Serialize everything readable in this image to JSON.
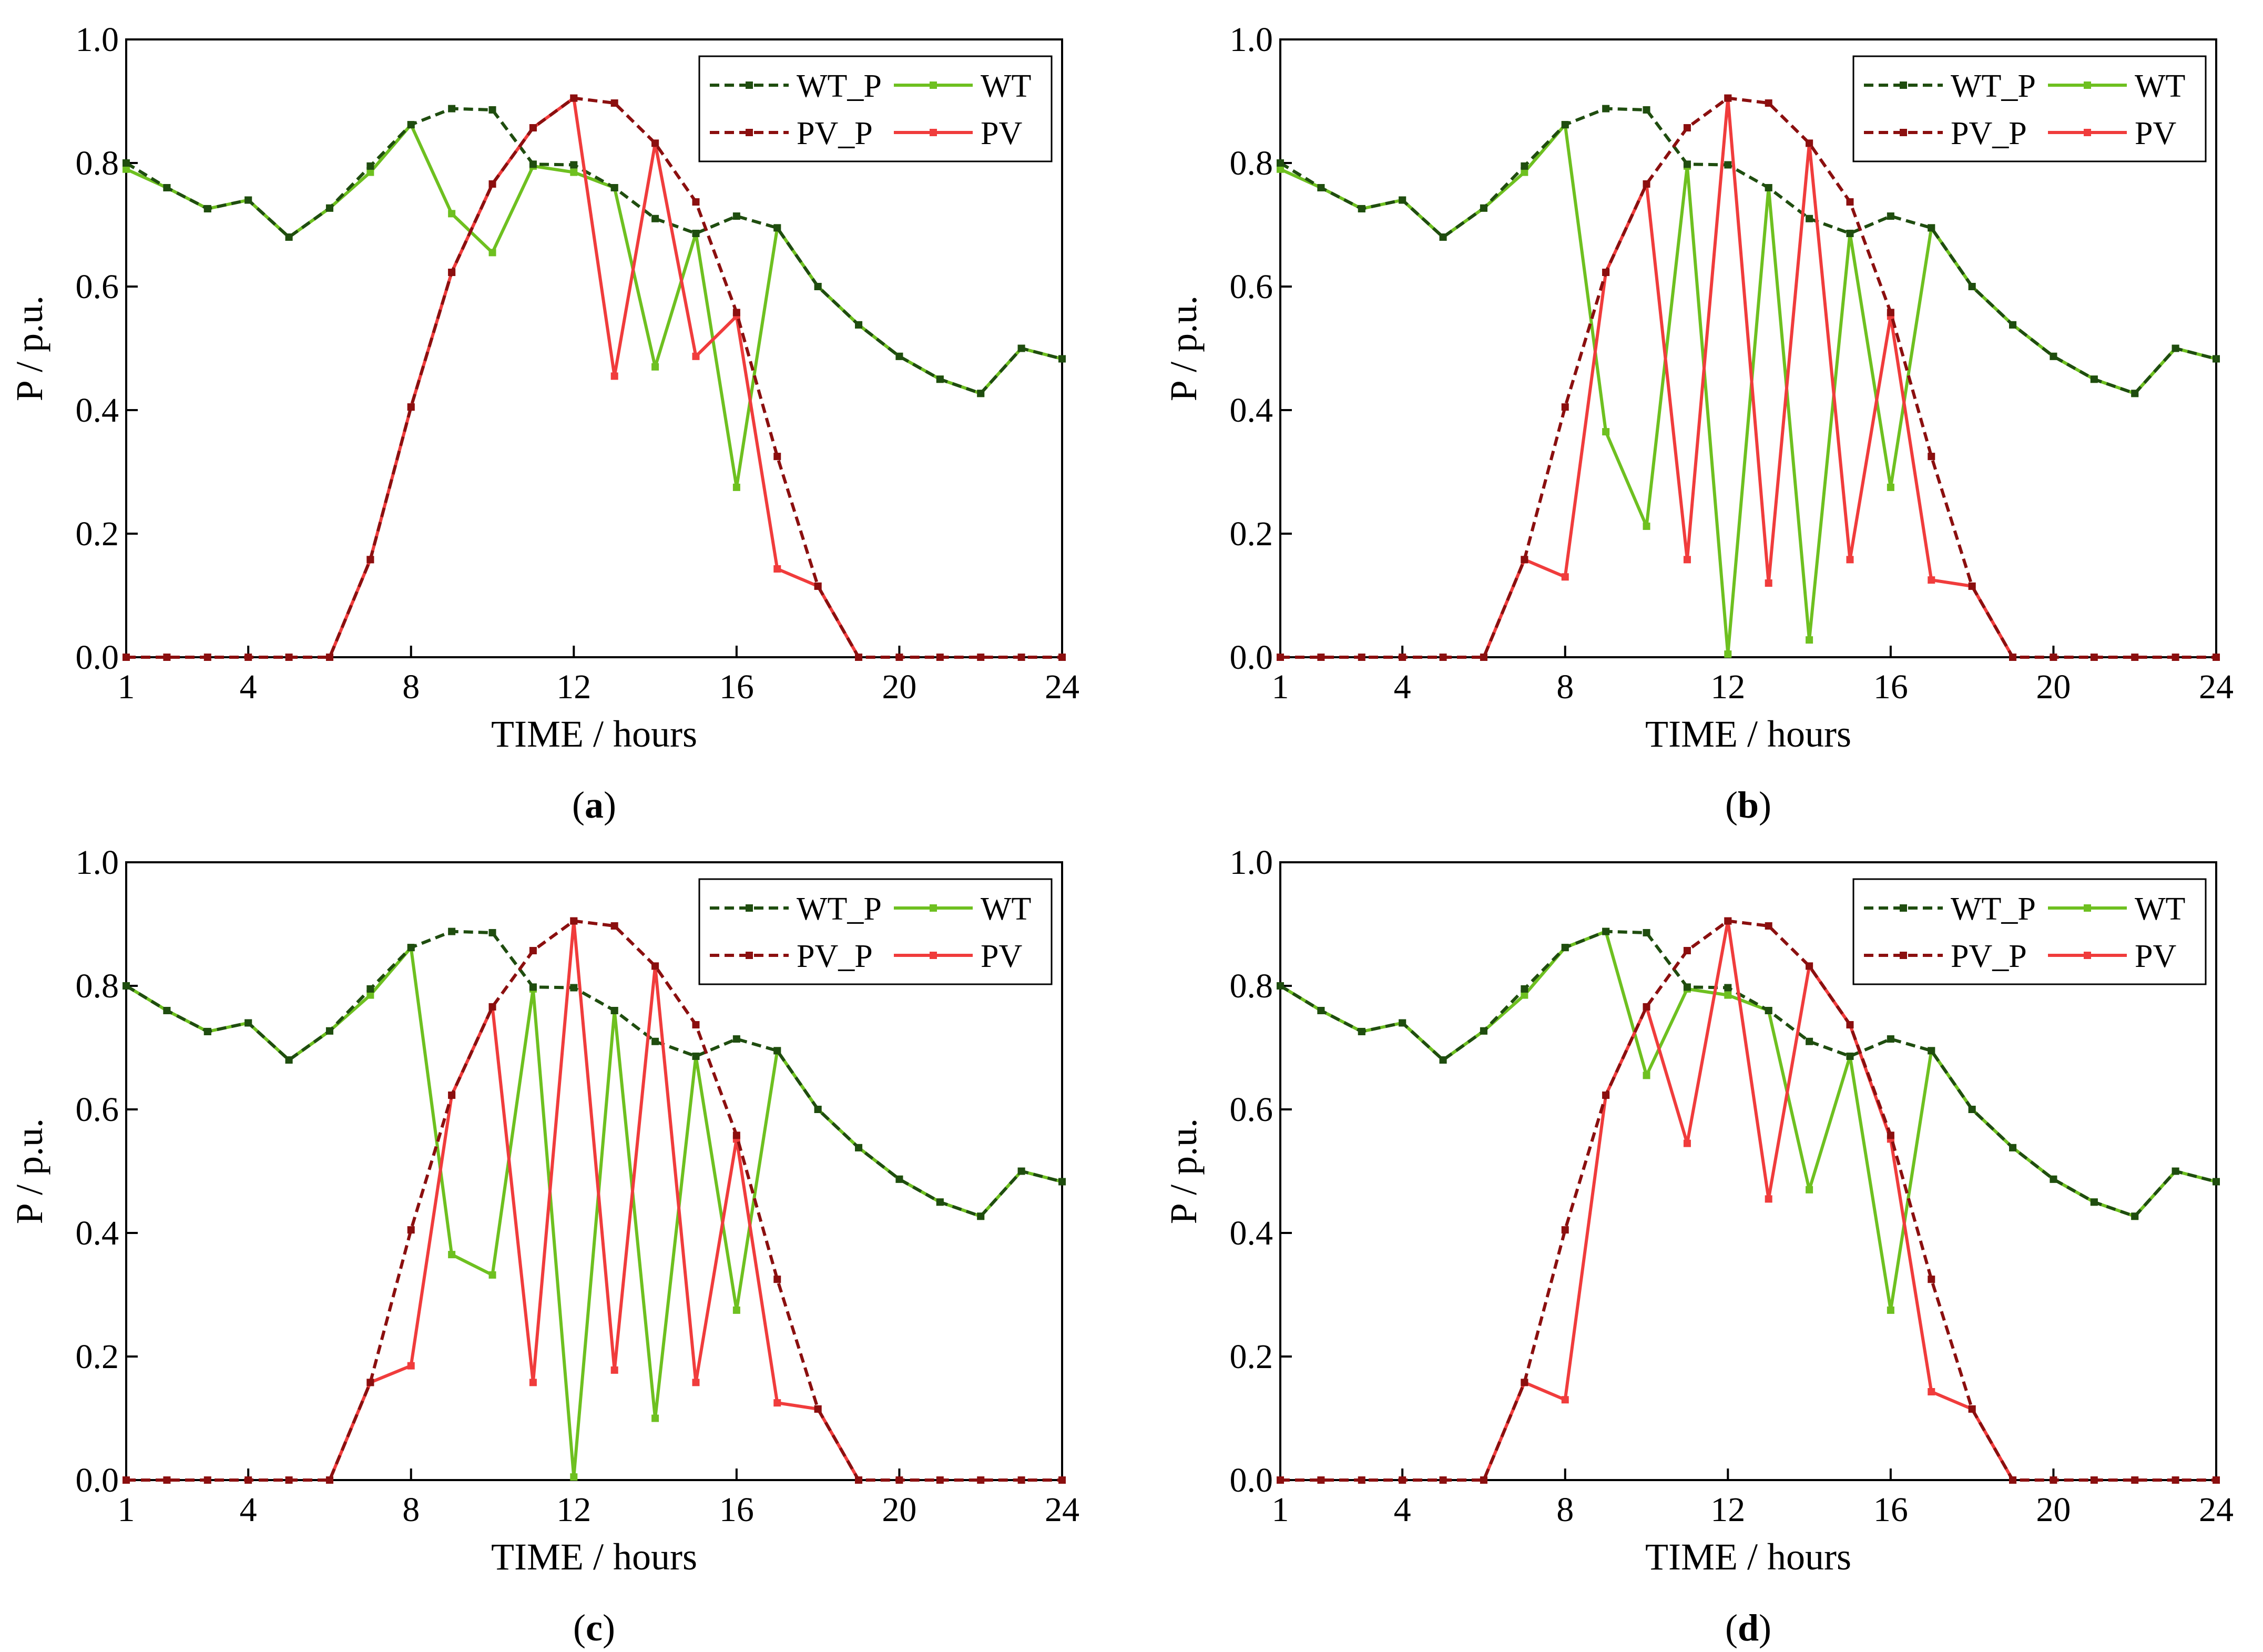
{
  "figure": {
    "panel_labels": [
      "a",
      "b",
      "c",
      "d"
    ]
  },
  "chart_data": [
    {
      "type": "line",
      "panel_label": "a",
      "xlabel": "TIME / hours",
      "ylabel": "P / p.u.",
      "xlim": [
        1,
        24
      ],
      "ylim": [
        0,
        1
      ],
      "xticks": [
        "1",
        "4",
        "8",
        "12",
        "16",
        "20",
        "24"
      ],
      "yticks": [
        "0.0",
        "0.2",
        "0.4",
        "0.6",
        "0.8",
        "1.0"
      ],
      "legend_position": "top-right",
      "grid": false,
      "x": [
        1,
        2,
        3,
        4,
        5,
        6,
        7,
        8,
        9,
        10,
        11,
        12,
        13,
        14,
        15,
        16,
        17,
        18,
        19,
        20,
        21,
        22,
        23,
        24
      ],
      "series": [
        {
          "name": "WT_P",
          "style": "dashed",
          "color": "#1f4d0f",
          "values": [
            0.8,
            0.76,
            0.726,
            0.74,
            0.68,
            0.727,
            0.795,
            0.862,
            0.888,
            0.886,
            0.798,
            0.797,
            0.76,
            0.71,
            0.686,
            0.714,
            0.695,
            0.6,
            0.538,
            0.487,
            0.45,
            0.427,
            0.5,
            0.483
          ]
        },
        {
          "name": "WT",
          "style": "solid",
          "color": "#6ec020",
          "values": [
            0.79,
            0.76,
            0.726,
            0.74,
            0.68,
            0.727,
            0.785,
            0.862,
            0.718,
            0.655,
            0.795,
            0.785,
            0.76,
            0.47,
            0.686,
            0.275,
            0.695,
            0.6,
            0.538,
            0.487,
            0.45,
            0.427,
            0.5,
            0.483
          ]
        },
        {
          "name": "PV_P",
          "style": "dashed",
          "color": "#8b0f0f",
          "values": [
            0,
            0,
            0,
            0,
            0,
            0,
            0.158,
            0.405,
            0.623,
            0.766,
            0.857,
            0.905,
            0.897,
            0.832,
            0.737,
            0.558,
            0.325,
            0.115,
            0,
            0,
            0,
            0,
            0,
            0
          ]
        },
        {
          "name": "PV",
          "style": "solid",
          "color": "#f03c3c",
          "values": [
            null,
            null,
            null,
            null,
            null,
            0,
            0.158,
            0.405,
            0.623,
            0.766,
            0.857,
            0.905,
            0.455,
            0.832,
            0.487,
            0.552,
            0.143,
            0.115,
            0,
            null,
            null,
            null,
            null,
            null
          ]
        }
      ]
    },
    {
      "type": "line",
      "panel_label": "b",
      "xlabel": "TIME / hours",
      "ylabel": "P / p.u.",
      "xlim": [
        1,
        24
      ],
      "ylim": [
        0,
        1
      ],
      "xticks": [
        "1",
        "4",
        "8",
        "12",
        "16",
        "20",
        "24"
      ],
      "yticks": [
        "0.0",
        "0.2",
        "0.4",
        "0.6",
        "0.8",
        "1.0"
      ],
      "legend_position": "top-right",
      "grid": false,
      "x": [
        1,
        2,
        3,
        4,
        5,
        6,
        7,
        8,
        9,
        10,
        11,
        12,
        13,
        14,
        15,
        16,
        17,
        18,
        19,
        20,
        21,
        22,
        23,
        24
      ],
      "series": [
        {
          "name": "WT_P",
          "style": "dashed",
          "color": "#1f4d0f",
          "values": [
            0.8,
            0.76,
            0.726,
            0.74,
            0.68,
            0.727,
            0.795,
            0.862,
            0.888,
            0.886,
            0.798,
            0.797,
            0.76,
            0.71,
            0.686,
            0.714,
            0.695,
            0.6,
            0.538,
            0.487,
            0.45,
            0.427,
            0.5,
            0.483
          ]
        },
        {
          "name": "WT",
          "style": "solid",
          "color": "#6ec020",
          "values": [
            0.79,
            0.76,
            0.726,
            0.74,
            0.68,
            0.727,
            0.785,
            0.862,
            0.365,
            0.212,
            0.795,
            0.005,
            0.76,
            0.028,
            0.686,
            0.275,
            0.695,
            0.6,
            0.538,
            0.487,
            0.45,
            0.427,
            0.5,
            0.483
          ]
        },
        {
          "name": "PV_P",
          "style": "dashed",
          "color": "#8b0f0f",
          "values": [
            0,
            0,
            0,
            0,
            0,
            0,
            0.158,
            0.405,
            0.623,
            0.766,
            0.857,
            0.905,
            0.897,
            0.832,
            0.737,
            0.558,
            0.325,
            0.115,
            0,
            0,
            0,
            0,
            0,
            0
          ]
        },
        {
          "name": "PV",
          "style": "solid",
          "color": "#f03c3c",
          "values": [
            null,
            null,
            null,
            null,
            null,
            0,
            0.158,
            0.13,
            0.623,
            0.766,
            0.158,
            0.905,
            0.12,
            0.832,
            0.158,
            0.552,
            0.125,
            0.115,
            0,
            null,
            null,
            null,
            null,
            null
          ]
        }
      ]
    },
    {
      "type": "line",
      "panel_label": "c",
      "xlabel": "TIME / hours",
      "ylabel": "P / p.u.",
      "xlim": [
        1,
        24
      ],
      "ylim": [
        0,
        1
      ],
      "xticks": [
        "1",
        "4",
        "8",
        "12",
        "16",
        "20",
        "24"
      ],
      "yticks": [
        "0.0",
        "0.2",
        "0.4",
        "0.6",
        "0.8",
        "1.0"
      ],
      "legend_position": "top-right",
      "grid": false,
      "x": [
        1,
        2,
        3,
        4,
        5,
        6,
        7,
        8,
        9,
        10,
        11,
        12,
        13,
        14,
        15,
        16,
        17,
        18,
        19,
        20,
        21,
        22,
        23,
        24
      ],
      "series": [
        {
          "name": "WT_P",
          "style": "dashed",
          "color": "#1f4d0f",
          "values": [
            0.8,
            0.76,
            0.726,
            0.74,
            0.68,
            0.727,
            0.795,
            0.862,
            0.888,
            0.886,
            0.798,
            0.797,
            0.76,
            0.71,
            0.686,
            0.714,
            0.695,
            0.6,
            0.538,
            0.487,
            0.45,
            0.427,
            0.5,
            0.483
          ]
        },
        {
          "name": "WT",
          "style": "solid",
          "color": "#6ec020",
          "values": [
            0.8,
            0.76,
            0.726,
            0.74,
            0.68,
            0.727,
            0.785,
            0.862,
            0.365,
            0.332,
            0.795,
            0.005,
            0.76,
            0.1,
            0.686,
            0.275,
            0.695,
            0.6,
            0.538,
            0.487,
            0.45,
            0.427,
            0.5,
            0.483
          ]
        },
        {
          "name": "PV_P",
          "style": "dashed",
          "color": "#8b0f0f",
          "values": [
            0,
            0,
            0,
            0,
            0,
            0,
            0.158,
            0.405,
            0.623,
            0.766,
            0.857,
            0.905,
            0.897,
            0.832,
            0.737,
            0.558,
            0.325,
            0.115,
            0,
            0,
            0,
            0,
            0,
            0
          ]
        },
        {
          "name": "PV",
          "style": "solid",
          "color": "#f03c3c",
          "values": [
            null,
            null,
            null,
            null,
            null,
            0,
            0.158,
            0.185,
            0.623,
            0.766,
            0.158,
            0.905,
            0.178,
            0.832,
            0.158,
            0.552,
            0.125,
            0.115,
            0,
            null,
            null,
            null,
            null,
            null
          ]
        }
      ]
    },
    {
      "type": "line",
      "panel_label": "d",
      "xlabel": "TIME / hours",
      "ylabel": "P / p.u.",
      "xlim": [
        1,
        24
      ],
      "ylim": [
        0,
        1
      ],
      "xticks": [
        "1",
        "4",
        "8",
        "12",
        "16",
        "20",
        "24"
      ],
      "yticks": [
        "0.0",
        "0.2",
        "0.4",
        "0.6",
        "0.8",
        "1.0"
      ],
      "legend_position": "top-right",
      "grid": false,
      "x": [
        1,
        2,
        3,
        4,
        5,
        6,
        7,
        8,
        9,
        10,
        11,
        12,
        13,
        14,
        15,
        16,
        17,
        18,
        19,
        20,
        21,
        22,
        23,
        24
      ],
      "series": [
        {
          "name": "WT_P",
          "style": "dashed",
          "color": "#1f4d0f",
          "values": [
            0.8,
            0.76,
            0.726,
            0.74,
            0.68,
            0.727,
            0.795,
            0.862,
            0.888,
            0.886,
            0.798,
            0.797,
            0.76,
            0.71,
            0.686,
            0.714,
            0.695,
            0.6,
            0.538,
            0.487,
            0.45,
            0.427,
            0.5,
            0.483
          ]
        },
        {
          "name": "WT",
          "style": "solid",
          "color": "#6ec020",
          "values": [
            0.8,
            0.76,
            0.726,
            0.74,
            0.68,
            0.727,
            0.785,
            0.862,
            0.888,
            0.655,
            0.795,
            0.785,
            0.76,
            0.47,
            0.686,
            0.275,
            0.695,
            0.6,
            0.538,
            0.487,
            0.45,
            0.427,
            0.5,
            0.483
          ]
        },
        {
          "name": "PV_P",
          "style": "dashed",
          "color": "#8b0f0f",
          "values": [
            0,
            0,
            0,
            0,
            0,
            0,
            0.158,
            0.405,
            0.623,
            0.766,
            0.857,
            0.905,
            0.897,
            0.832,
            0.737,
            0.558,
            0.325,
            0.115,
            0,
            0,
            0,
            0,
            0,
            0
          ]
        },
        {
          "name": "PV",
          "style": "solid",
          "color": "#f03c3c",
          "values": [
            null,
            null,
            null,
            null,
            null,
            0,
            0.158,
            0.13,
            0.623,
            0.766,
            0.545,
            0.905,
            0.455,
            0.832,
            0.737,
            0.552,
            0.143,
            0.115,
            0,
            null,
            null,
            null,
            null,
            null
          ]
        }
      ]
    }
  ]
}
